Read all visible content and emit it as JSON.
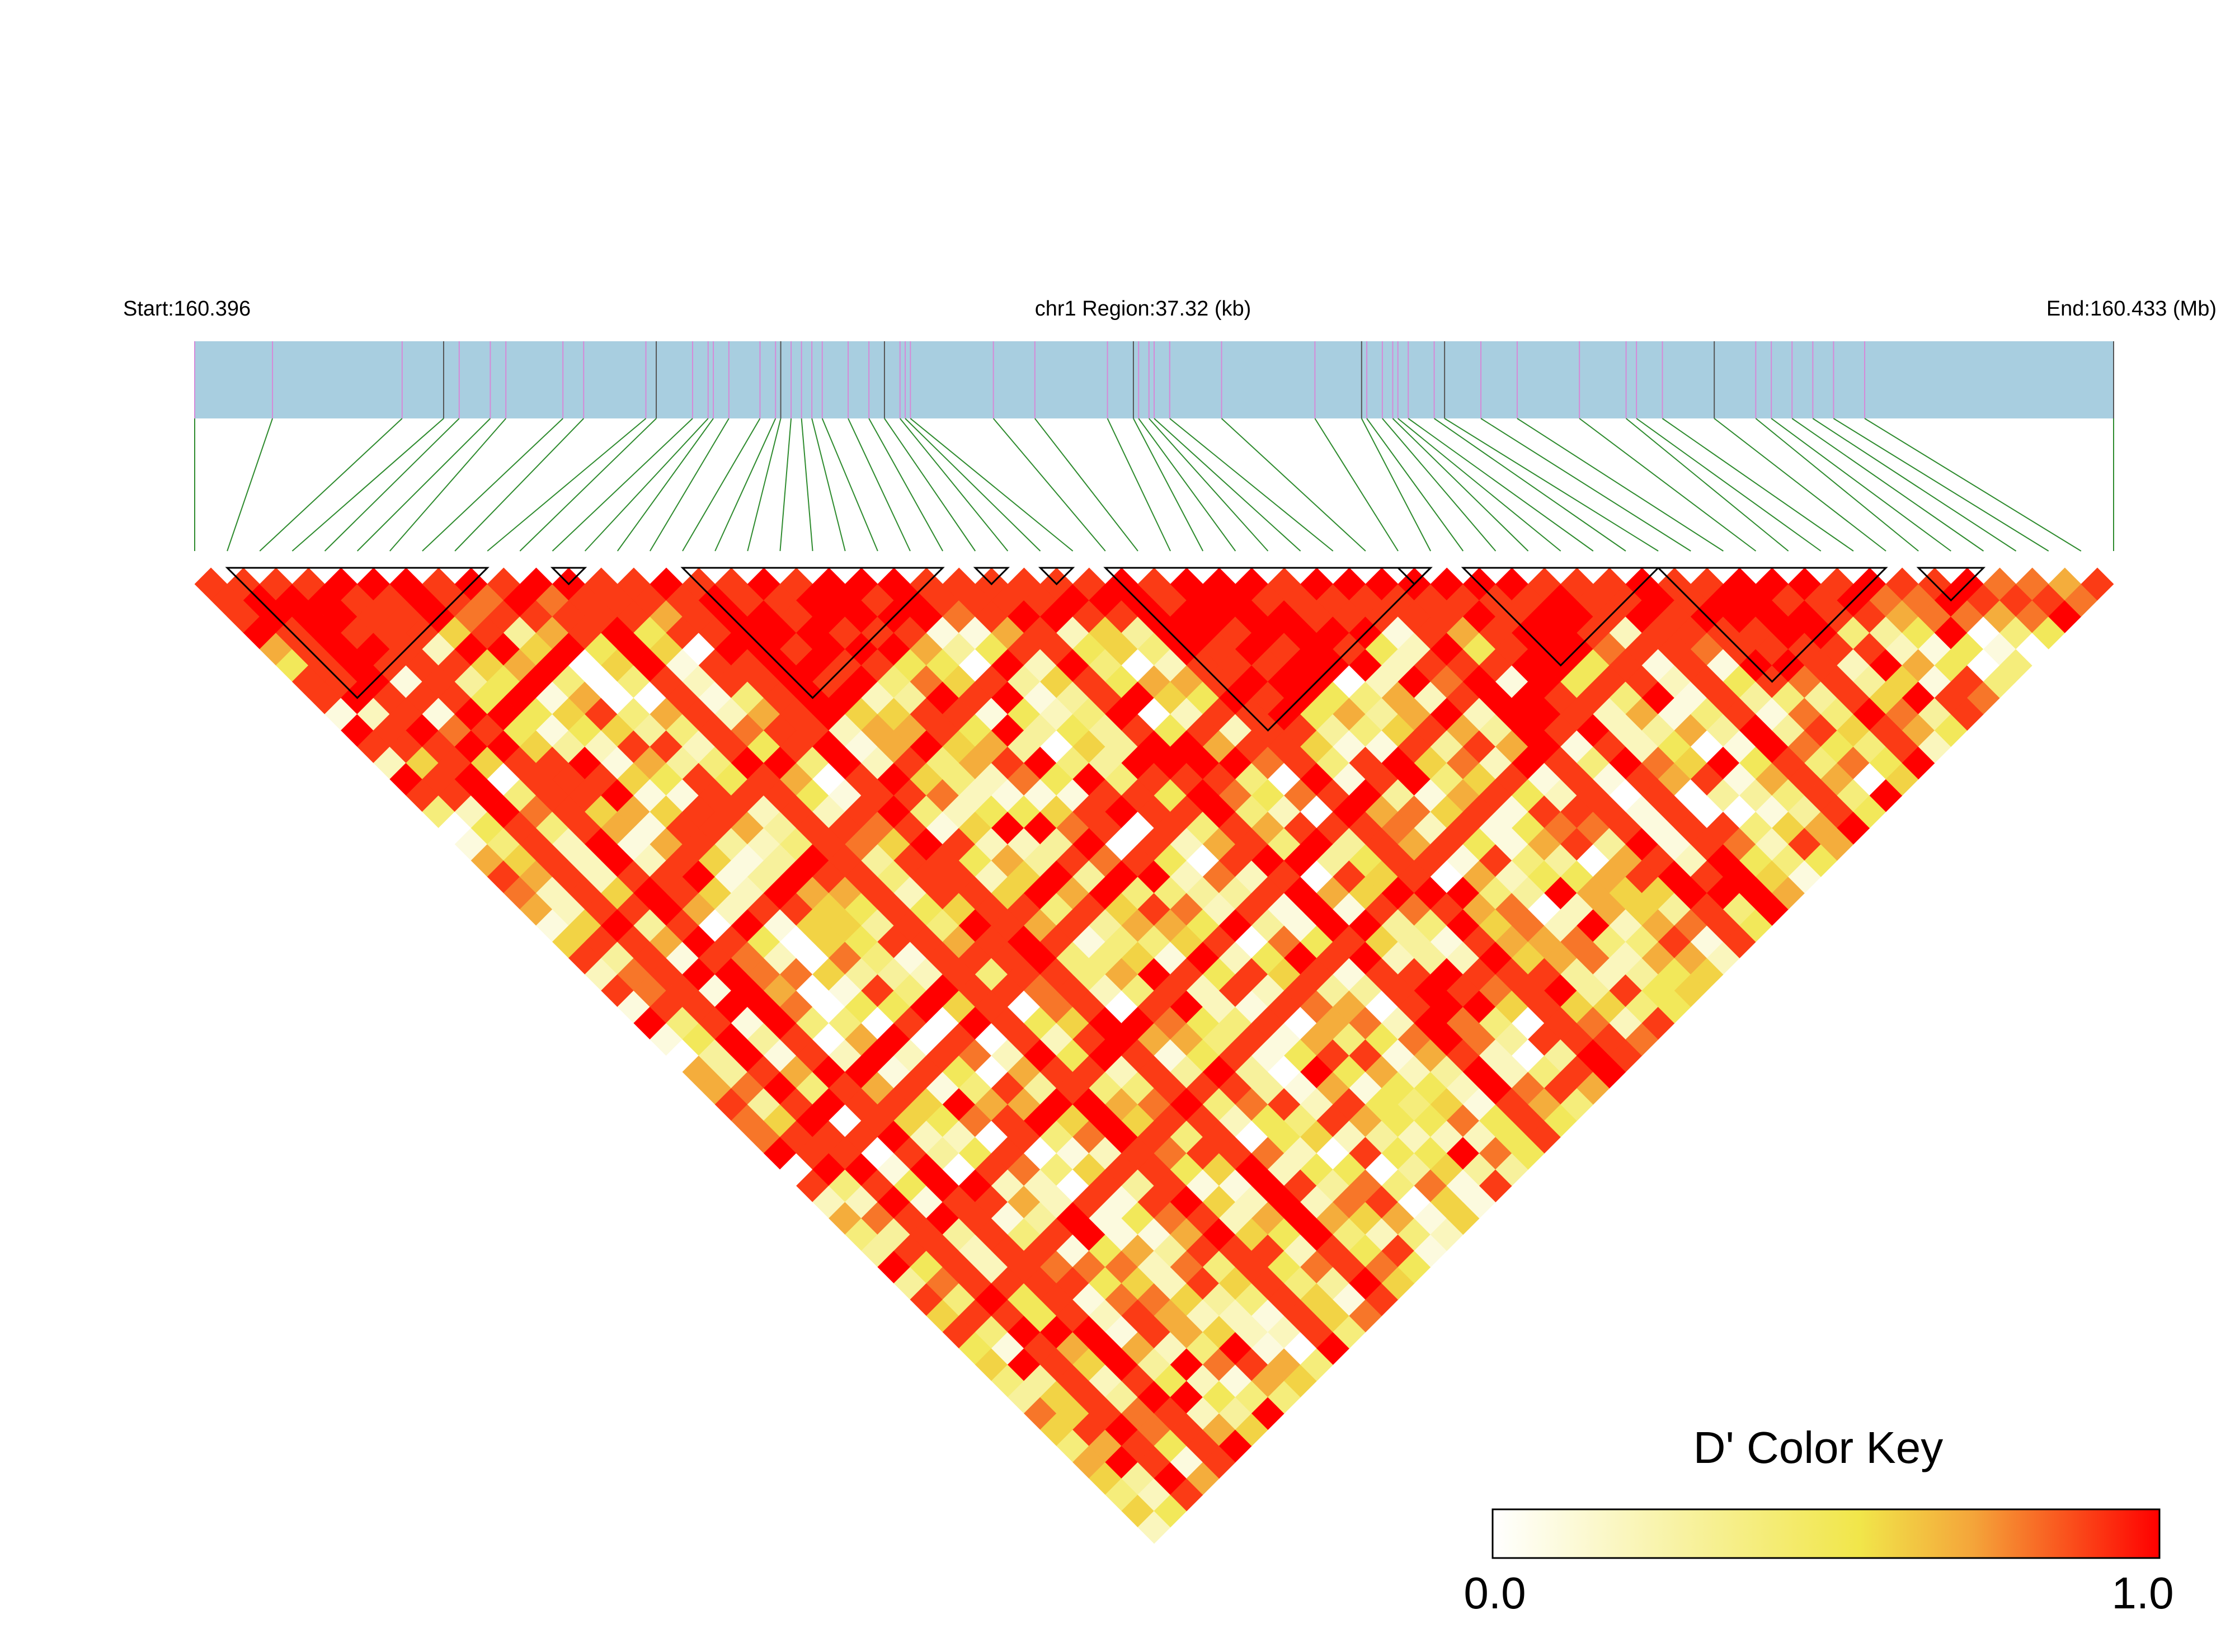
{
  "chart_data": {
    "type": "heatmap",
    "subtype": "linkage-disequilibrium-triangle",
    "header": {
      "start_label": "Start:160.396",
      "region_label": "chr1 Region:37.32 (kb)",
      "end_label": "End:160.433 (Mb)"
    },
    "region": {
      "chromosome": "chr1",
      "start_mb": 160.396,
      "end_mb": 160.433,
      "span_kb": 37.32
    },
    "marker_count": 60,
    "markers_pos_mb": [
      160.396,
      160.3975,
      160.4,
      160.4008,
      160.4011,
      160.4017,
      160.402,
      160.4031,
      160.4035,
      160.4047,
      160.4049,
      160.4056,
      160.4059,
      160.406,
      160.4063,
      160.4069,
      160.4072,
      160.4073,
      160.4075,
      160.4077,
      160.4079,
      160.4081,
      160.4086,
      160.409,
      160.4093,
      160.4096,
      160.4097,
      160.4098,
      160.4114,
      160.4122,
      160.4136,
      160.4141,
      160.4142,
      160.4144,
      160.4145,
      160.4148,
      160.4158,
      160.4176,
      160.4185,
      160.4186,
      160.4189,
      160.4191,
      160.4192,
      160.4194,
      160.4199,
      160.4201,
      160.4208,
      160.4215,
      160.4227,
      160.4236,
      160.4238,
      160.4243,
      160.4253,
      160.4261,
      160.4264,
      160.4268,
      160.4272,
      160.4276,
      160.4282,
      160.433
    ],
    "haplotype_blocks": [
      [
        1,
        9
      ],
      [
        11,
        12
      ],
      [
        15,
        23
      ],
      [
        24,
        25
      ],
      [
        26,
        27
      ],
      [
        28,
        38
      ],
      [
        37,
        38
      ],
      [
        39,
        45
      ],
      [
        45,
        52
      ],
      [
        53,
        55
      ]
    ],
    "color_scale": {
      "name": "D' Color Key",
      "min": 0.0,
      "max": 1.0,
      "min_label": "0.0",
      "max_label": "1.0",
      "stops": [
        "#ffffff",
        "#f1e64a",
        "#f4a53a",
        "#ff0000"
      ]
    },
    "ld_dprime_levels": [
      0.0,
      0.1,
      0.2,
      0.3,
      0.4,
      0.5,
      0.6,
      0.7,
      0.8,
      0.9,
      1.0
    ],
    "ld_dprime_seed": 7,
    "track_color": "#a8cee0",
    "snp_tick_color": "#d58ad8",
    "connector_color": "#2e8b2e",
    "block_outline_color": "#000000"
  }
}
